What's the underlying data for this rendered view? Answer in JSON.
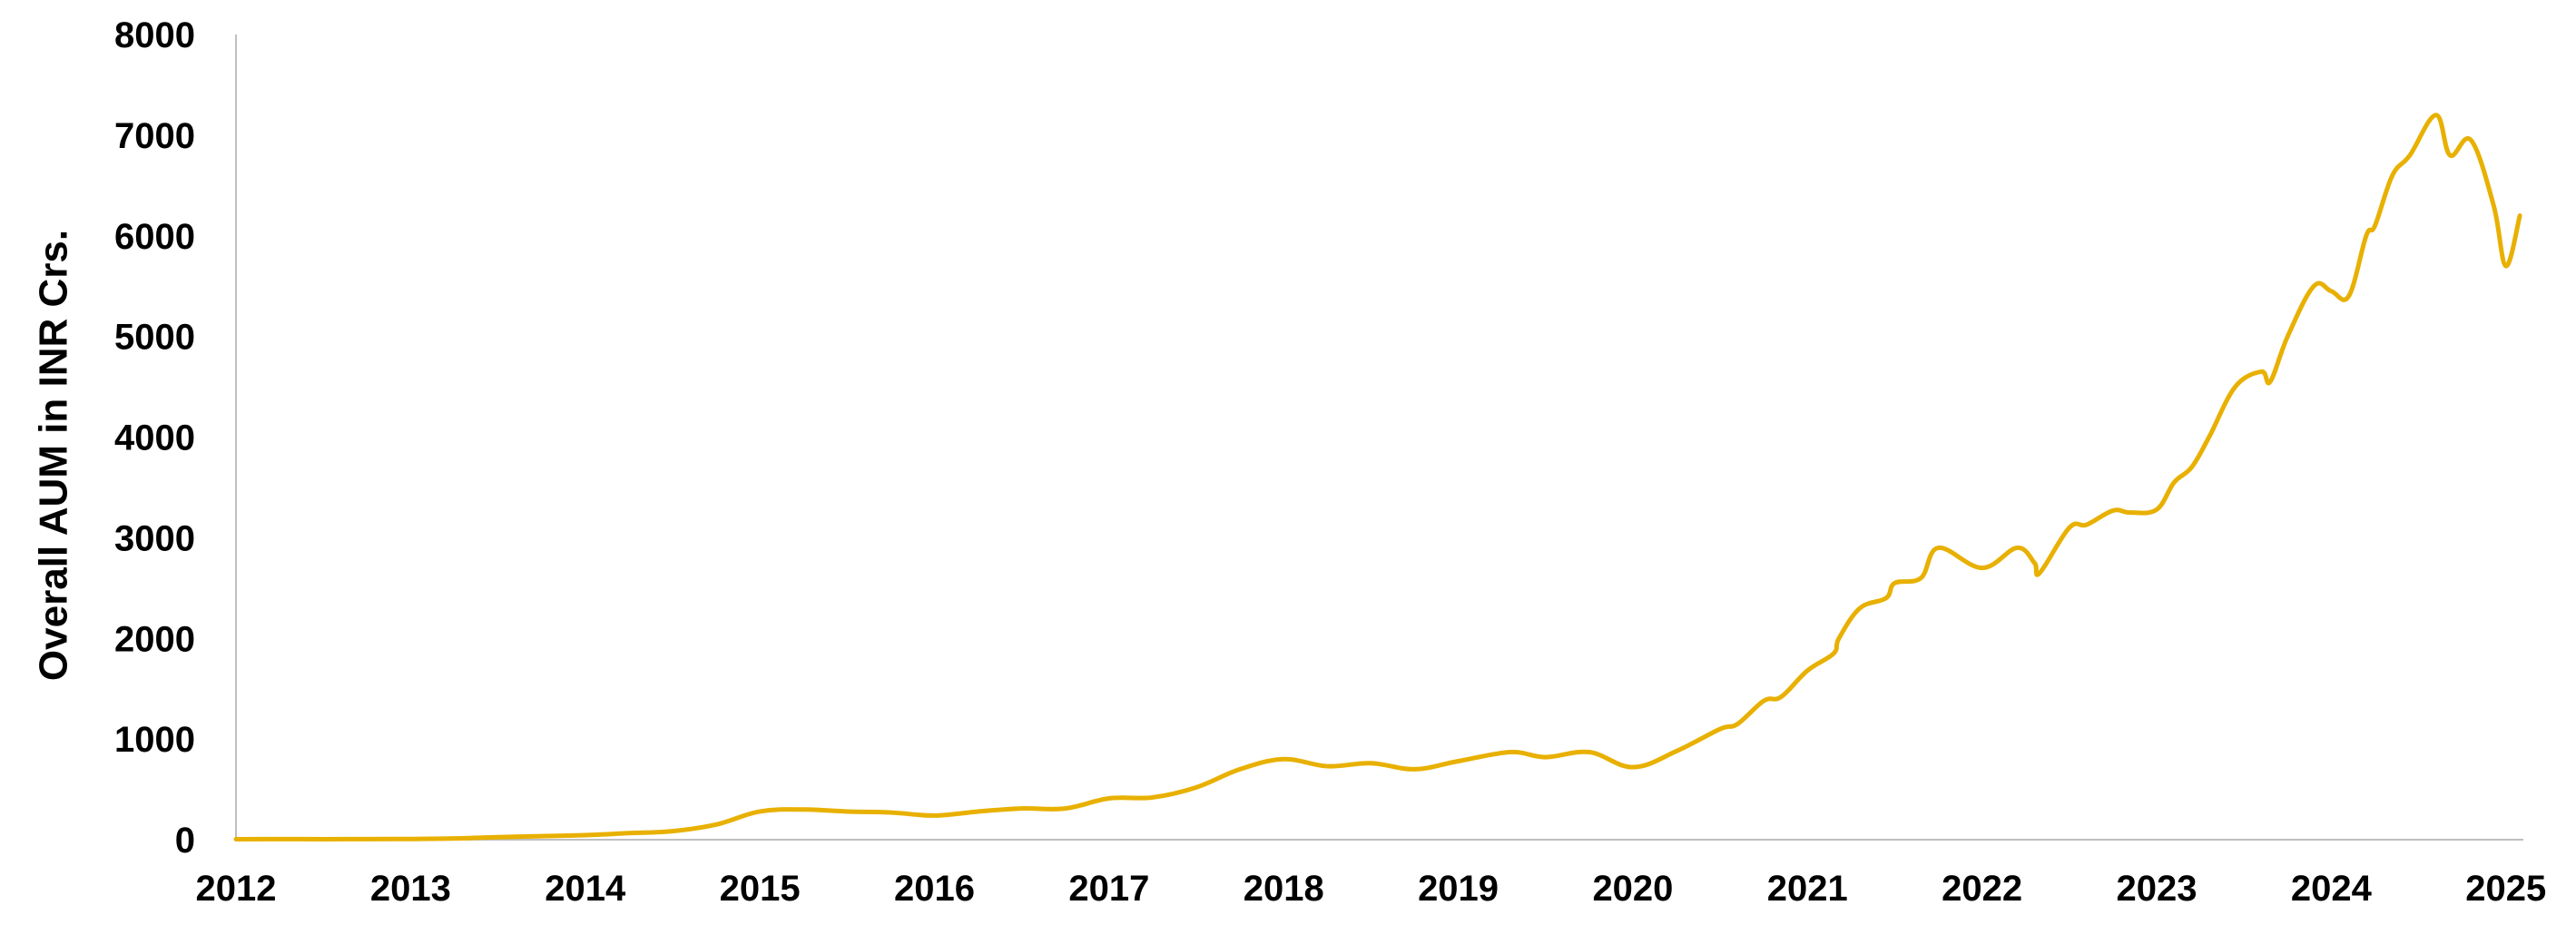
{
  "chart_data": {
    "type": "line",
    "title": "",
    "xlabel": "",
    "ylabel": "Overall AUM in INR Crs.",
    "ylim": [
      0,
      8000
    ],
    "xlim": [
      2012,
      2025.1
    ],
    "x_ticks": [
      "2012",
      "2013",
      "2014",
      "2015",
      "2016",
      "2017",
      "2018",
      "2019",
      "2020",
      "2021",
      "2022",
      "2023",
      "2024",
      "2025"
    ],
    "y_ticks": [
      "0",
      "1000",
      "2000",
      "3000",
      "4000",
      "5000",
      "6000",
      "7000",
      "8000"
    ],
    "grid": false,
    "legend": "none",
    "series": [
      {
        "color": "#E8B000",
        "x": [
          2012.0,
          2012.25,
          2012.5,
          2012.75,
          2013.0,
          2013.25,
          2013.5,
          2013.75,
          2014.0,
          2014.25,
          2014.5,
          2014.75,
          2015.0,
          2015.25,
          2015.5,
          2015.75,
          2016.0,
          2016.25,
          2016.5,
          2016.75,
          2017.0,
          2017.25,
          2017.5,
          2017.75,
          2018.0,
          2018.25,
          2018.5,
          2018.75,
          2019.0,
          2019.3,
          2019.5,
          2019.75,
          2020.0,
          2020.25,
          2020.5,
          2020.6,
          2020.75,
          2020.85,
          2021.0,
          2021.15,
          2021.18,
          2021.3,
          2021.45,
          2021.5,
          2021.65,
          2021.75,
          2022.0,
          2022.2,
          2022.3,
          2022.33,
          2022.5,
          2022.6,
          2022.75,
          2022.85,
          2023.0,
          2023.1,
          2023.2,
          2023.3,
          2023.45,
          2023.6,
          2023.65,
          2023.75,
          2023.9,
          2024.0,
          2024.1,
          2024.2,
          2024.25,
          2024.35,
          2024.45,
          2024.6,
          2024.68,
          2024.8,
          2024.93,
          2025.0,
          2025.08
        ],
        "values": [
          5,
          6,
          5,
          6,
          7,
          12,
          25,
          35,
          45,
          65,
          85,
          150,
          280,
          300,
          280,
          270,
          240,
          280,
          310,
          310,
          410,
          420,
          520,
          700,
          800,
          730,
          760,
          700,
          780,
          870,
          820,
          870,
          720,
          880,
          1100,
          1150,
          1380,
          1420,
          1680,
          1850,
          2000,
          2300,
          2400,
          2550,
          2600,
          2900,
          2700,
          2900,
          2750,
          2650,
          3100,
          3130,
          3270,
          3250,
          3280,
          3550,
          3700,
          4000,
          4500,
          4650,
          4550,
          5000,
          5500,
          5450,
          5400,
          6000,
          6100,
          6600,
          6800,
          7200,
          6800,
          6950,
          6300,
          5700,
          6200
        ]
      }
    ]
  }
}
